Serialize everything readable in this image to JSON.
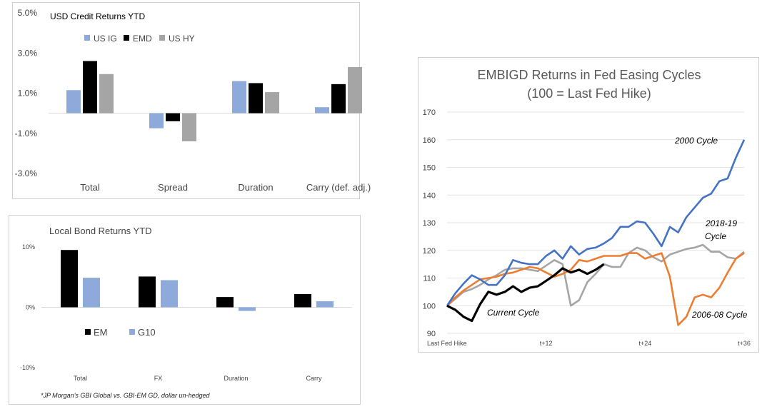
{
  "chart_data": [
    {
      "type": "bar",
      "title": "USD Credit Returns YTD",
      "categories": [
        "Total",
        "Spread",
        "Duration",
        "Carry (def. adj.)"
      ],
      "yticks": [
        "5.0%",
        "3.0%",
        "1.0%",
        "-1.0%",
        "-3.0%"
      ],
      "ylim": [
        -3.0,
        5.0
      ],
      "legend_position": "top-left",
      "series": [
        {
          "name": "US IG",
          "color": "#8eaadb",
          "values": [
            1.15,
            -0.75,
            1.6,
            0.3
          ]
        },
        {
          "name": "EMD",
          "color": "#000000",
          "values": [
            2.6,
            -0.4,
            1.5,
            1.45
          ]
        },
        {
          "name": "US HY",
          "color": "#a5a5a5",
          "values": [
            1.95,
            -1.4,
            1.05,
            2.3
          ]
        }
      ]
    },
    {
      "type": "bar",
      "title": "Local Bond Returns YTD",
      "categories": [
        "Total",
        "FX",
        "Duration",
        "Carry"
      ],
      "yticks": [
        "10%",
        "0%",
        "-10%"
      ],
      "ylim": [
        -10,
        10
      ],
      "legend_position": "center-left",
      "footnote": "*JP Morgan's GBI Global vs. GBI-EM GD, dollar un-hedged",
      "series": [
        {
          "name": "EM",
          "color": "#000000",
          "values": [
            9.5,
            5.1,
            1.7,
            2.2
          ]
        },
        {
          "name": "G10",
          "color": "#8eaadb",
          "values": [
            4.9,
            4.5,
            -0.6,
            1.0
          ]
        }
      ]
    },
    {
      "type": "line",
      "title": "EMBIGD Returns in Fed Easing Cycles",
      "subtitle": "(100 = Last Fed Hike)",
      "ylim": [
        90,
        170
      ],
      "yticks": [
        "170",
        "160",
        "150",
        "140",
        "130",
        "120",
        "110",
        "100",
        "90"
      ],
      "xlim": [
        0,
        36
      ],
      "xticks": [
        {
          "x": 0,
          "label": "Last Fed Hike"
        },
        {
          "x": 12,
          "label": "t+12"
        },
        {
          "x": 24,
          "label": "t+24"
        },
        {
          "x": 36,
          "label": "t+36"
        }
      ],
      "series": [
        {
          "name": "2000 Cycle",
          "color": "#4472c4",
          "values": [
            100,
            104.5,
            108,
            111,
            109.5,
            107.5,
            107.5,
            111,
            116.5,
            115.5,
            115,
            115,
            118,
            120,
            117,
            121.5,
            118.5,
            120.5,
            121,
            122.5,
            124.5,
            128.5,
            128.5,
            130.5,
            130,
            126,
            121.5,
            128.5,
            126.5,
            132,
            135.5,
            139,
            140.5,
            145,
            146,
            153.5,
            160
          ]
        },
        {
          "name": "2006-08 Cycle",
          "color": "#ed7d31",
          "values": [
            100,
            103,
            105.5,
            107.5,
            109.5,
            110,
            110.5,
            111.5,
            112,
            113,
            114,
            113.5,
            112,
            110.5,
            111.5,
            113,
            116.5,
            116,
            117,
            118,
            118,
            118,
            119,
            119,
            117,
            118,
            119,
            110.5,
            93,
            96,
            103,
            104,
            103,
            106.5,
            112,
            117,
            119
          ]
        },
        {
          "name": "2018-19 Cycle",
          "color": "#a5a5a5",
          "values": [
            100,
            102.5,
            105,
            106,
            107.5,
            109.5,
            111,
            113,
            113.5,
            113.5,
            113,
            112.5,
            114.5,
            116.5,
            115,
            100,
            102,
            108.5,
            111.5,
            115,
            114,
            114,
            119,
            121,
            120,
            117.5,
            116,
            118.5,
            119.5,
            120.5,
            121,
            122,
            119.5,
            119.5,
            117.5,
            117,
            119.5
          ]
        },
        {
          "name": "Current Cycle",
          "color": "#000000",
          "values": [
            100,
            98.5,
            96,
            94.5,
            100.5,
            105,
            104,
            105,
            107,
            105,
            106.5,
            107,
            109,
            111,
            113.5,
            112,
            113,
            111.5,
            113,
            115
          ]
        }
      ],
      "annotations": [
        "2000 Cycle",
        "2018-19",
        "Cycle",
        "Current Cycle",
        "2006-08 Cycle"
      ]
    }
  ]
}
